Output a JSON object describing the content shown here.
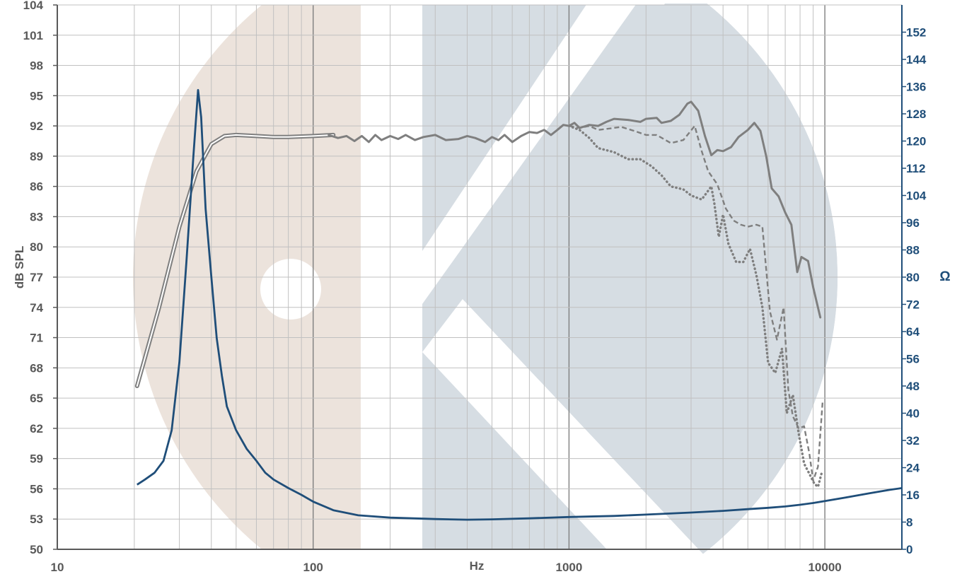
{
  "chart_data": {
    "type": "line",
    "xscale": "log",
    "xlim": [
      10,
      20000
    ],
    "ylim": [
      50,
      104
    ],
    "y2lim": [
      0,
      160
    ],
    "xlabel": "Hz",
    "ylabel": "dB SPL",
    "y2label": "Ω",
    "grid": true,
    "x_ticks": [
      {
        "value": 10,
        "label": "10"
      },
      {
        "value": 100,
        "label": "100"
      },
      {
        "value": 1000,
        "label": "1000"
      },
      {
        "value": 10000,
        "label": "10000"
      }
    ],
    "y_ticks": [
      "104",
      "101",
      "98",
      "95",
      "92",
      "89",
      "86",
      "83",
      "80",
      "77",
      "74",
      "71",
      "68",
      "65",
      "62",
      "59",
      "56",
      "53",
      "50"
    ],
    "y2_ticks": [
      "152",
      "144",
      "136",
      "128",
      "120",
      "112",
      "104",
      "96",
      "88",
      "80",
      "72",
      "64",
      "56",
      "48",
      "40",
      "32",
      "24",
      "16",
      "8",
      "0"
    ],
    "colors": {
      "spl": "#7f7f7f",
      "impedance": "#1f4e79",
      "grid": "#c0c0c0",
      "watermark_tan": "#ece3dc",
      "watermark_blue": "#d6dde3"
    },
    "series": [
      {
        "style": "double",
        "axis": "left",
        "points": [
          [
            20.5,
            66.2
          ],
          [
            25,
            74
          ],
          [
            30,
            82
          ],
          [
            35,
            87.5
          ],
          [
            40,
            90.2
          ],
          [
            45,
            91
          ],
          [
            50,
            91.1
          ],
          [
            60,
            91
          ],
          [
            70,
            90.9
          ],
          [
            80,
            90.9
          ],
          [
            100,
            91
          ],
          [
            120,
            91.1
          ]
        ]
      },
      {
        "style": "solid",
        "axis": "left",
        "points": [
          [
            115,
            91.1
          ],
          [
            125,
            90.8
          ],
          [
            135,
            91
          ],
          [
            145,
            90.5
          ],
          [
            155,
            91
          ],
          [
            165,
            90.4
          ],
          [
            175,
            91.1
          ],
          [
            185,
            90.6
          ],
          [
            200,
            91
          ],
          [
            215,
            90.7
          ],
          [
            230,
            91.1
          ],
          [
            250,
            90.6
          ],
          [
            270,
            90.9
          ],
          [
            300,
            91.1
          ],
          [
            330,
            90.6
          ],
          [
            370,
            90.7
          ],
          [
            400,
            91
          ],
          [
            430,
            90.8
          ],
          [
            470,
            90.4
          ],
          [
            500,
            90.9
          ],
          [
            530,
            90.6
          ],
          [
            560,
            91.1
          ],
          [
            600,
            90.4
          ],
          [
            650,
            91
          ],
          [
            700,
            91.4
          ],
          [
            750,
            91.3
          ],
          [
            800,
            91.6
          ],
          [
            850,
            91.1
          ],
          [
            900,
            91.6
          ],
          [
            950,
            92.1
          ],
          [
            1000,
            92
          ],
          [
            1050,
            92.3
          ],
          [
            1100,
            91.8
          ],
          [
            1200,
            92.1
          ],
          [
            1300,
            92
          ],
          [
            1400,
            92.4
          ],
          [
            1500,
            92.7
          ],
          [
            1700,
            92.6
          ],
          [
            1900,
            92.4
          ],
          [
            2000,
            92.7
          ],
          [
            2200,
            92.8
          ],
          [
            2300,
            92.3
          ],
          [
            2500,
            92.5
          ],
          [
            2700,
            93.1
          ],
          [
            2900,
            94.2
          ],
          [
            3000,
            94.4
          ],
          [
            3200,
            93.5
          ],
          [
            3400,
            91
          ],
          [
            3600,
            89.1
          ],
          [
            3800,
            89.6
          ],
          [
            4000,
            89.5
          ],
          [
            4300,
            89.9
          ],
          [
            4600,
            90.9
          ],
          [
            5000,
            91.6
          ],
          [
            5300,
            92.3
          ],
          [
            5600,
            91.5
          ],
          [
            5900,
            89
          ],
          [
            6200,
            85.8
          ],
          [
            6600,
            85
          ],
          [
            7000,
            83.4
          ],
          [
            7400,
            82.2
          ],
          [
            7800,
            77.5
          ],
          [
            8100,
            79
          ],
          [
            8600,
            78.6
          ],
          [
            9000,
            76
          ],
          [
            9600,
            73
          ]
        ]
      },
      {
        "style": "dashed",
        "axis": "left",
        "points": [
          [
            1000,
            92
          ],
          [
            1100,
            91.8
          ],
          [
            1200,
            92
          ],
          [
            1300,
            91.6
          ],
          [
            1400,
            91.7
          ],
          [
            1600,
            91.9
          ],
          [
            1800,
            91.5
          ],
          [
            2000,
            91.1
          ],
          [
            2200,
            91.1
          ],
          [
            2500,
            90.3
          ],
          [
            2800,
            90.6
          ],
          [
            3100,
            92
          ],
          [
            3300,
            89.5
          ],
          [
            3500,
            87.5
          ],
          [
            3800,
            86.2
          ],
          [
            4100,
            83.8
          ],
          [
            4400,
            82.6
          ],
          [
            4700,
            82.2
          ],
          [
            5000,
            82
          ],
          [
            5400,
            82.2
          ],
          [
            5700,
            82
          ],
          [
            6100,
            73.6
          ],
          [
            6500,
            70.8
          ],
          [
            6900,
            74
          ],
          [
            7200,
            65.8
          ],
          [
            7500,
            63.2
          ],
          [
            7900,
            62
          ],
          [
            8300,
            62.2
          ],
          [
            8700,
            59.5
          ],
          [
            9000,
            56.8
          ],
          [
            9400,
            58.2
          ],
          [
            9800,
            64.6
          ]
        ]
      },
      {
        "style": "dotted",
        "axis": "left",
        "points": [
          [
            1000,
            92
          ],
          [
            1100,
            91.6
          ],
          [
            1200,
            90.8
          ],
          [
            1300,
            89.8
          ],
          [
            1500,
            89.4
          ],
          [
            1700,
            88.7
          ],
          [
            1900,
            88.7
          ],
          [
            2100,
            88
          ],
          [
            2300,
            87.1
          ],
          [
            2500,
            86
          ],
          [
            2800,
            85.7
          ],
          [
            3000,
            85.1
          ],
          [
            3300,
            84.7
          ],
          [
            3600,
            86
          ],
          [
            3700,
            84.3
          ],
          [
            3850,
            81
          ],
          [
            4000,
            83.2
          ],
          [
            4200,
            80.3
          ],
          [
            4500,
            78.5
          ],
          [
            4800,
            78.5
          ],
          [
            5100,
            79.8
          ],
          [
            5400,
            77.2
          ],
          [
            5700,
            74
          ],
          [
            6000,
            68.5
          ],
          [
            6400,
            67.5
          ],
          [
            6800,
            69.9
          ],
          [
            7100,
            63.5
          ],
          [
            7500,
            65.3
          ],
          [
            7900,
            61.5
          ],
          [
            8300,
            58.5
          ],
          [
            8700,
            57.5
          ],
          [
            9100,
            56.5
          ],
          [
            9400,
            56.2
          ],
          [
            9700,
            57.5
          ]
        ]
      },
      {
        "style": "solid",
        "axis": "right",
        "points": [
          [
            20.5,
            19
          ],
          [
            22,
            20.5
          ],
          [
            24,
            22.5
          ],
          [
            26,
            26
          ],
          [
            28,
            35
          ],
          [
            30,
            55
          ],
          [
            32,
            85
          ],
          [
            34,
            115
          ],
          [
            35.5,
            135
          ],
          [
            36.5,
            127
          ],
          [
            38,
            100
          ],
          [
            40,
            80
          ],
          [
            42,
            62
          ],
          [
            44,
            51
          ],
          [
            46,
            42
          ],
          [
            50,
            35
          ],
          [
            55,
            29.5
          ],
          [
            60,
            26
          ],
          [
            65,
            22.5
          ],
          [
            70,
            20.5
          ],
          [
            80,
            18
          ],
          [
            90,
            16
          ],
          [
            100,
            14
          ],
          [
            120,
            11.5
          ],
          [
            150,
            10
          ],
          [
            200,
            9.3
          ],
          [
            300,
            8.9
          ],
          [
            400,
            8.7
          ],
          [
            500,
            8.8
          ],
          [
            700,
            9.1
          ],
          [
            1000,
            9.5
          ],
          [
            1500,
            9.8
          ],
          [
            2000,
            10.2
          ],
          [
            3000,
            10.8
          ],
          [
            4000,
            11.3
          ],
          [
            5000,
            11.8
          ],
          [
            6000,
            12.2
          ],
          [
            7000,
            12.6
          ],
          [
            8000,
            13.1
          ],
          [
            9000,
            13.6
          ],
          [
            10000,
            14.2
          ],
          [
            12000,
            15.2
          ],
          [
            15000,
            16.5
          ],
          [
            18000,
            17.5
          ],
          [
            20000,
            18
          ]
        ]
      }
    ]
  }
}
